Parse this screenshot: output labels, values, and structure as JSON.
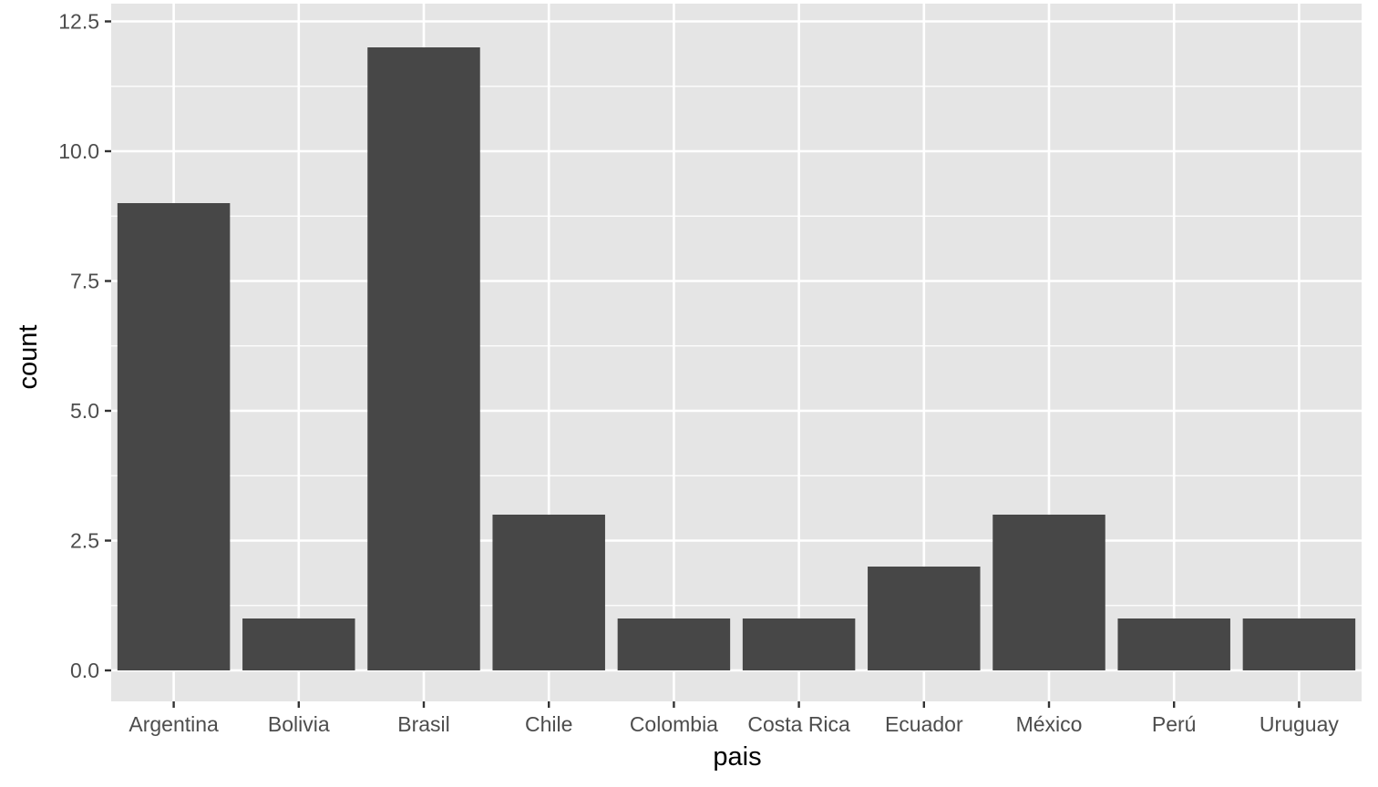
{
  "chart_data": {
    "type": "bar",
    "categories": [
      "Argentina",
      "Bolivia",
      "Brasil",
      "Chile",
      "Colombia",
      "Costa Rica",
      "Ecuador",
      "México",
      "Perú",
      "Uruguay"
    ],
    "values": [
      9,
      1,
      12,
      3,
      1,
      1,
      2,
      3,
      1,
      1
    ],
    "xlabel": "pais",
    "ylabel": "count",
    "ylim": [
      -0.6,
      12.5
    ],
    "yticks": [
      0,
      2.5,
      5,
      7.5,
      10,
      12.5
    ],
    "ytick_labels": [
      "0.0",
      "2.5",
      "5.0",
      "7.5",
      "10.0",
      "12.5"
    ],
    "grid": true,
    "colors": {
      "panel_background": "#e5e5e5",
      "grid": "#ffffff",
      "bar": "#474747",
      "tick": "#333333",
      "tick_label": "#4d4d4d"
    }
  }
}
